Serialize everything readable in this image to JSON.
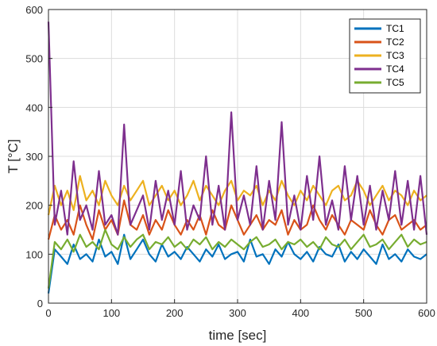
{
  "chart_data": {
    "type": "line",
    "xlabel": "time [sec]",
    "ylabel": "T [°C]",
    "xlim": [
      0,
      600
    ],
    "ylim": [
      0,
      600
    ],
    "xticks": [
      0,
      100,
      200,
      300,
      400,
      500,
      600
    ],
    "yticks": [
      0,
      100,
      200,
      300,
      400,
      500,
      600
    ],
    "grid": true,
    "legend_location": "top-right",
    "x": [
      0,
      10,
      20,
      30,
      40,
      50,
      60,
      70,
      80,
      90,
      100,
      110,
      120,
      130,
      140,
      150,
      160,
      170,
      180,
      190,
      200,
      210,
      220,
      230,
      240,
      250,
      260,
      270,
      280,
      290,
      300,
      310,
      320,
      330,
      340,
      350,
      360,
      370,
      380,
      390,
      400,
      410,
      420,
      430,
      440,
      450,
      460,
      470,
      480,
      490,
      500,
      510,
      520,
      530,
      540,
      550,
      560,
      570,
      580,
      590,
      600
    ],
    "series": [
      {
        "name": "TC1",
        "color": "#0072BD",
        "values": [
          20,
          110,
          95,
          80,
          120,
          90,
          100,
          85,
          130,
          95,
          105,
          80,
          140,
          90,
          110,
          130,
          100,
          85,
          120,
          95,
          105,
          90,
          115,
          100,
          85,
          110,
          95,
          120,
          90,
          100,
          105,
          85,
          130,
          95,
          100,
          80,
          110,
          95,
          125,
          100,
          90,
          105,
          85,
          115,
          100,
          95,
          120,
          85,
          105,
          90,
          110,
          95,
          80,
          120,
          90,
          100,
          85,
          110,
          95,
          90,
          100
        ]
      },
      {
        "name": "TC2",
        "color": "#D95319",
        "values": [
          130,
          180,
          150,
          170,
          140,
          200,
          160,
          130,
          190,
          150,
          170,
          140,
          210,
          160,
          150,
          180,
          140,
          170,
          150,
          190,
          160,
          140,
          170,
          150,
          180,
          140,
          190,
          160,
          150,
          200,
          170,
          140,
          160,
          180,
          150,
          170,
          160,
          190,
          140,
          170,
          150,
          160,
          200,
          170,
          150,
          180,
          160,
          140,
          170,
          160,
          150,
          190,
          160,
          140,
          170,
          180,
          150,
          160,
          170,
          150,
          160
        ]
      },
      {
        "name": "TC3",
        "color": "#EDB120",
        "values": [
          180,
          240,
          200,
          230,
          190,
          260,
          210,
          230,
          200,
          250,
          220,
          200,
          240,
          210,
          230,
          250,
          200,
          220,
          240,
          210,
          230,
          200,
          220,
          250,
          210,
          240,
          220,
          200,
          230,
          250,
          210,
          230,
          220,
          240,
          200,
          230,
          210,
          250,
          220,
          200,
          230,
          210,
          240,
          220,
          200,
          230,
          240,
          210,
          220,
          250,
          230,
          200,
          220,
          240,
          210,
          230,
          220,
          200,
          230,
          210,
          220
        ]
      },
      {
        "name": "TC4",
        "color": "#7E2F8E",
        "values": [
          575,
          160,
          230,
          140,
          290,
          170,
          200,
          150,
          270,
          160,
          180,
          140,
          365,
          160,
          190,
          220,
          150,
          250,
          170,
          230,
          160,
          270,
          150,
          200,
          170,
          300,
          160,
          240,
          150,
          390,
          170,
          220,
          160,
          280,
          150,
          250,
          170,
          370,
          160,
          220,
          150,
          260,
          170,
          300,
          160,
          210,
          150,
          280,
          170,
          260,
          160,
          240,
          150,
          230,
          170,
          270,
          160,
          250,
          150,
          260,
          140
        ]
      },
      {
        "name": "TC5",
        "color": "#77AC30",
        "values": [
          30,
          125,
          110,
          130,
          105,
          140,
          115,
          125,
          110,
          150,
          120,
          110,
          135,
          115,
          130,
          140,
          110,
          125,
          120,
          135,
          115,
          125,
          110,
          130,
          120,
          135,
          110,
          125,
          115,
          130,
          120,
          110,
          125,
          135,
          115,
          120,
          130,
          110,
          125,
          120,
          130,
          115,
          125,
          110,
          135,
          120,
          115,
          130,
          110,
          125,
          140,
          115,
          120,
          130,
          110,
          125,
          140,
          115,
          130,
          120,
          125
        ]
      }
    ]
  }
}
